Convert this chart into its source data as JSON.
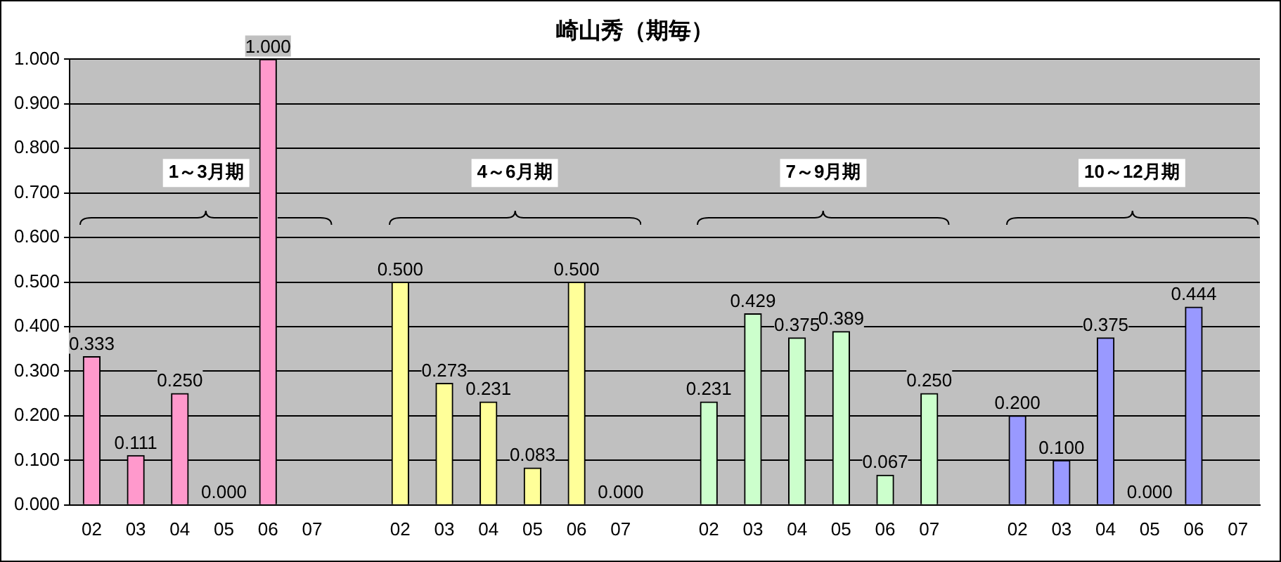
{
  "chart_data": {
    "type": "bar",
    "title": "崎山秀（期毎）",
    "categories": [
      "02",
      "03",
      "04",
      "05",
      "06",
      "07",
      null,
      "02",
      "03",
      "04",
      "05",
      "06",
      "07",
      null,
      "02",
      "03",
      "04",
      "05",
      "06",
      "07",
      null,
      "02",
      "03",
      "04",
      "05",
      "06",
      "07"
    ],
    "values": [
      0.333,
      0.111,
      0.25,
      0.0,
      1.0,
      null,
      null,
      0.5,
      0.273,
      0.231,
      0.083,
      0.5,
      0.0,
      null,
      0.231,
      0.429,
      0.375,
      0.389,
      0.067,
      0.25,
      null,
      0.2,
      0.1,
      0.375,
      0.0,
      0.444,
      null
    ],
    "colors": [
      "#ff99cc",
      "#ff99cc",
      "#ff99cc",
      "#ff99cc",
      "#ff99cc",
      "#ff99cc",
      null,
      "#ffff99",
      "#ffff99",
      "#ffff99",
      "#ffff99",
      "#ffff99",
      "#ffff99",
      null,
      "#ccffcc",
      "#ccffcc",
      "#ccffcc",
      "#ccffcc",
      "#ccffcc",
      "#ccffcc",
      null,
      "#9999ff",
      "#9999ff",
      "#9999ff",
      "#9999ff",
      "#9999ff",
      "#9999ff"
    ],
    "ylim": [
      0,
      1
    ],
    "yticks": [
      {
        "value": 0,
        "label": "0.000"
      },
      {
        "value": 0.1,
        "label": "0.100"
      },
      {
        "value": 0.2,
        "label": "0.200"
      },
      {
        "value": 0.3,
        "label": "0.300"
      },
      {
        "value": 0.4,
        "label": "0.400"
      },
      {
        "value": 0.5,
        "label": "0.500"
      },
      {
        "value": 0.6,
        "label": "0.600"
      },
      {
        "value": 0.7,
        "label": "0.700"
      },
      {
        "value": 0.8,
        "label": "0.800"
      },
      {
        "value": 0.9,
        "label": "0.900"
      },
      {
        "value": 1,
        "label": "1.000"
      }
    ],
    "value_labels": [
      "0.333",
      "0.111",
      "0.250",
      "0.000",
      "1.000",
      null,
      null,
      "0.500",
      "0.273",
      "0.231",
      "0.083",
      "0.500",
      "0.000",
      null,
      "0.231",
      "0.429",
      "0.375",
      "0.389",
      "0.067",
      "0.250",
      null,
      "0.200",
      "0.100",
      "0.375",
      "0.000",
      "0.444",
      null
    ],
    "grid": "y",
    "legend": false,
    "annotations": [
      "1～3月期",
      "4～6月期",
      "7～9月期",
      "10～12月期"
    ]
  }
}
